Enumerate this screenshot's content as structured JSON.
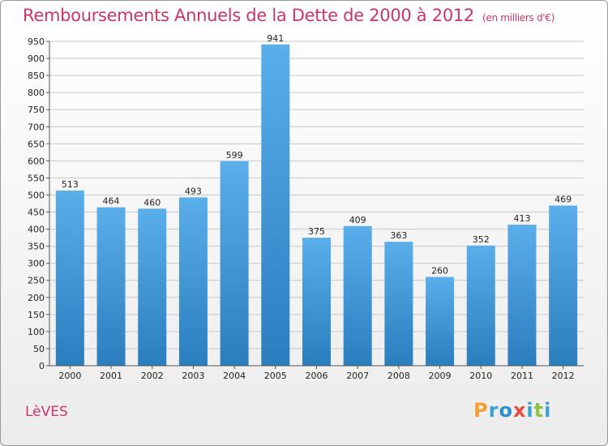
{
  "page": {
    "title": "Remboursements Annuels de la Dette de 2000 à 2012",
    "unit_note": "(en milliers d'€)",
    "commune": "LèVES",
    "logo_text": "Proxiti"
  },
  "colors": {
    "title": "#c8366a",
    "bar_top": "#5aaeea",
    "bar_bottom": "#2a7ebe",
    "grid": "#c8c8c8",
    "logo_letters": [
      "#f2a12e",
      "#3aa0d8",
      "#2e8ece",
      "#e94c3c",
      "#3aa0d8",
      "#8cc63f",
      "#3aa0d8"
    ]
  },
  "chart_data": {
    "type": "bar",
    "categories": [
      "2000",
      "2001",
      "2002",
      "2003",
      "2004",
      "2005",
      "2006",
      "2007",
      "2008",
      "2009",
      "2010",
      "2011",
      "2012"
    ],
    "values": [
      513,
      464,
      460,
      493,
      599,
      941,
      375,
      409,
      363,
      260,
      352,
      413,
      469
    ],
    "ylim": [
      0,
      950
    ],
    "yticks": [
      0,
      50,
      100,
      150,
      200,
      250,
      300,
      350,
      400,
      450,
      500,
      550,
      600,
      650,
      700,
      750,
      800,
      850,
      900,
      950
    ],
    "grid": true,
    "data_labels": true
  }
}
